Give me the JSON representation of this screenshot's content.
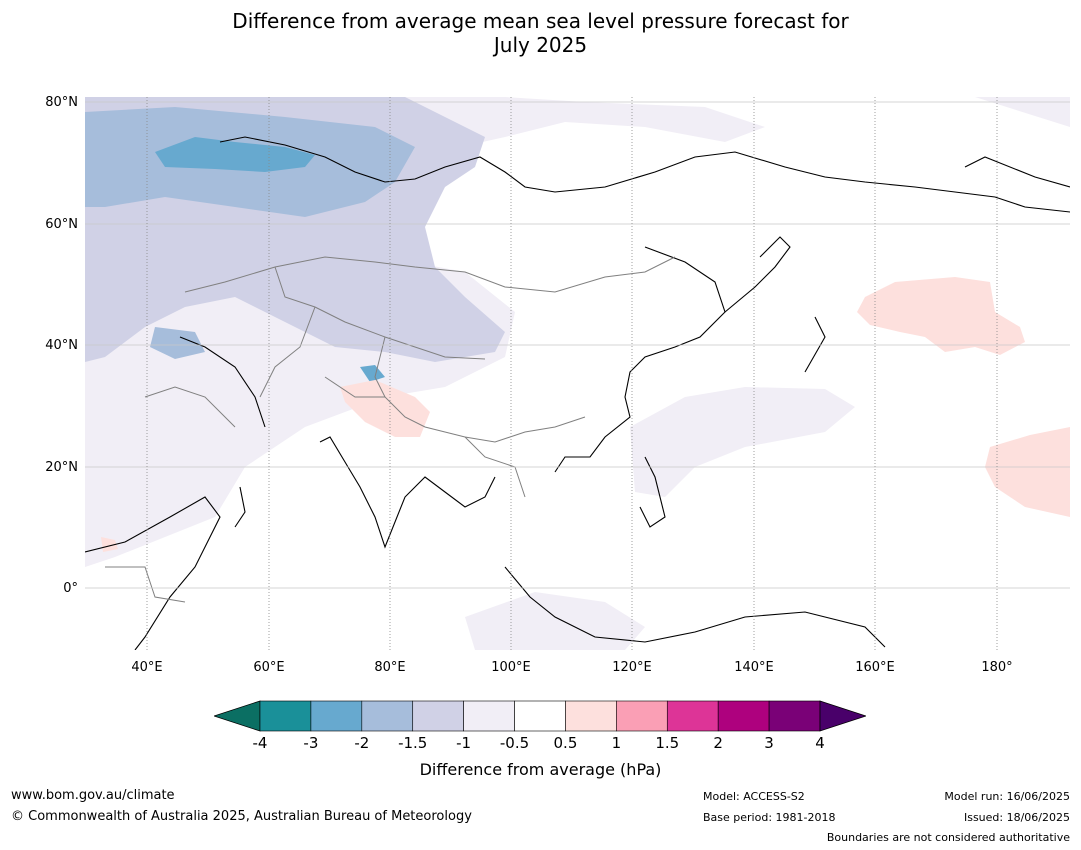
{
  "title_line1": "Difference from average mean sea level pressure forecast for",
  "title_line2": "July 2025",
  "lat_labels": [
    "80°N",
    "60°N",
    "40°N",
    "20°N",
    "0°"
  ],
  "lon_labels": [
    "40°E",
    "60°E",
    "80°E",
    "100°E",
    "120°E",
    "140°E",
    "160°E",
    "180°"
  ],
  "colorbar": {
    "ticks": [
      "-4",
      "-3",
      "-2",
      "-1.5",
      "-1",
      "-0.5",
      "0.5",
      "1",
      "1.5",
      "2",
      "3",
      "4"
    ],
    "colors": [
      "#0b6f63",
      "#1a9099",
      "#67a9cf",
      "#a6bddb",
      "#d0d1e6",
      "#f1eef6",
      "#ffffff",
      "#fde0dd",
      "#fa9fb5",
      "#dd3497",
      "#ae017e",
      "#7a0177",
      "#49006a"
    ],
    "label": "Difference from average (hPa)"
  },
  "footer": {
    "url": "www.bom.gov.au/climate",
    "copyright": "© Commonwealth of Australia 2025, Australian Bureau of Meteorology",
    "model": "Model: ACCESS-S2",
    "base_period": "Base period: 1981-2018",
    "model_run": "Model run: 16/06/2025",
    "issued": "Issued: 18/06/2025",
    "disclaimer": "Boundaries are not considered authoritative"
  }
}
